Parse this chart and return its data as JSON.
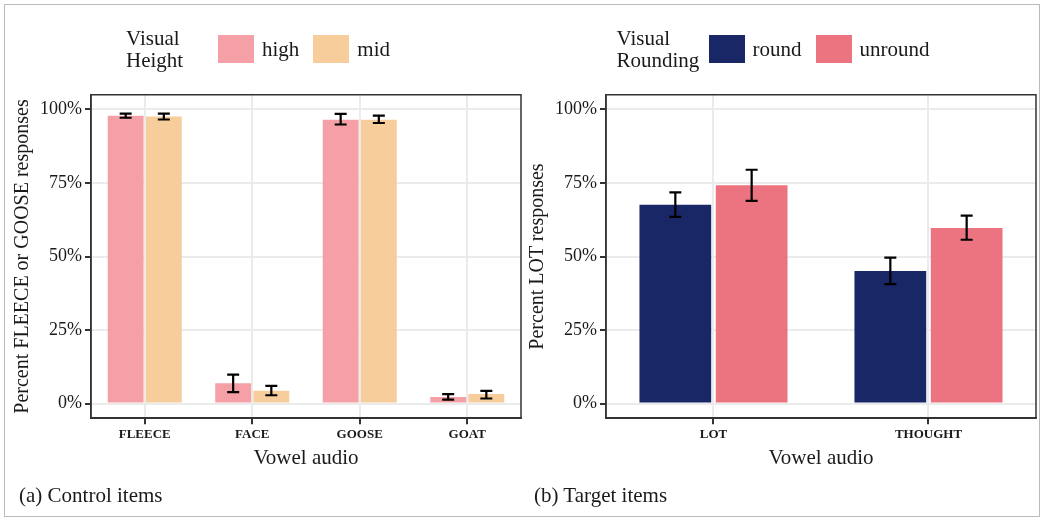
{
  "chart_data": [
    {
      "type": "bar",
      "categories": [
        "FLEECE",
        "FACE",
        "GOOSE",
        "GOAT"
      ],
      "xlabel": "Vowel audio",
      "ylabel": "Percent FLEECE or GOOSE responses",
      "legend_title": "Visual Height",
      "legend": "top",
      "grid": true,
      "series": [
        {
          "name": "high",
          "color": "#f4a0a6",
          "values": [
            97.9,
            6.9,
            96.5,
            2.2
          ],
          "errors": [
            [
              97.2,
              98.6
            ],
            [
              3.9,
              9.8
            ],
            [
              94.9,
              98.5
            ],
            [
              1.3,
              3.2
            ]
          ]
        },
        {
          "name": "mid",
          "color": "#f6cd9b",
          "values": [
            97.6,
            4.3,
            96.5,
            3.2
          ],
          "errors": [
            [
              96.6,
              98.6
            ],
            [
              2.8,
              6.0
            ],
            [
              95.4,
              97.9
            ],
            [
              1.7,
              4.3
            ]
          ]
        }
      ],
      "ylim": [
        -5,
        105
      ],
      "yticks": [
        {
          "value": 0,
          "label": "0%"
        },
        {
          "value": 25,
          "label": "25%"
        },
        {
          "value": 50,
          "label": "50%"
        },
        {
          "value": 75,
          "label": "75%"
        },
        {
          "value": 100,
          "label": "100%"
        }
      ],
      "annotations": [
        "(a) Control items"
      ]
    },
    {
      "type": "bar",
      "categories": [
        "LOT",
        "THOUGHT"
      ],
      "xlabel": "Vowel audio",
      "ylabel": "Percent LOT responses",
      "legend_title": "Visual Rounding",
      "legend": "top",
      "grid": true,
      "series": [
        {
          "name": "round",
          "color": "#1a2766",
          "values": [
            67.6,
            45.1
          ],
          "errors": [
            [
              63.5,
              71.8
            ],
            [
              40.6,
              49.6
            ]
          ]
        },
        {
          "name": "unround",
          "color": "#ec7480",
          "values": [
            74.2,
            59.7
          ],
          "errors": [
            [
              68.9,
              79.5
            ],
            [
              55.7,
              63.9
            ]
          ]
        }
      ],
      "ylim": [
        -5,
        105
      ],
      "yticks": [
        {
          "value": 0,
          "label": "0%"
        },
        {
          "value": 25,
          "label": "25%"
        },
        {
          "value": 50,
          "label": "50%"
        },
        {
          "value": 75,
          "label": "75%"
        },
        {
          "value": 100,
          "label": "100%"
        }
      ],
      "annotations": [
        "(b) Target items"
      ]
    }
  ]
}
